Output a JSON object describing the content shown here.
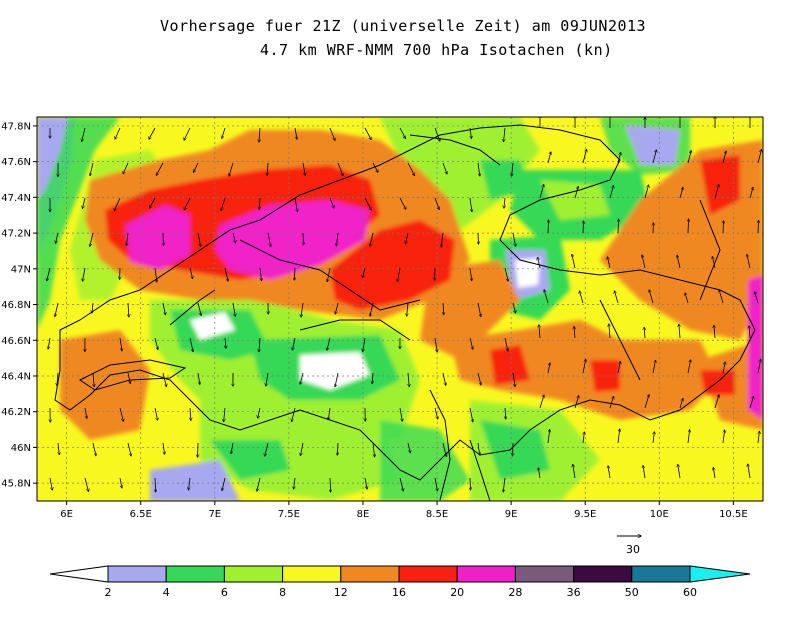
{
  "title": {
    "line1": "Vorhersage fuer 21Z (universelle Zeit) am 09JUN2013",
    "line2": "4.7 km WRF-NMM 700 hPa Isotachen (kn)"
  },
  "map": {
    "lon_ticks": [
      "6E",
      "6.5E",
      "7E",
      "7.5E",
      "8E",
      "8.5E",
      "9E",
      "9.5E",
      "10E",
      "10.5E"
    ],
    "lat_ticks": [
      "47.8N",
      "47.6N",
      "47.4N",
      "47.2N",
      "47N",
      "46.8N",
      "46.6N",
      "46.4N",
      "46.2N",
      "46N",
      "45.8N"
    ],
    "lon_range": [
      5.8,
      10.7
    ],
    "lat_range": [
      45.7,
      47.85
    ],
    "reference_vector_label": "30"
  },
  "colorbar": {
    "labels": [
      "2",
      "4",
      "6",
      "8",
      "12",
      "16",
      "20",
      "28",
      "36",
      "50",
      "60"
    ],
    "colors": [
      "#ffffff",
      "#a8a8f0",
      "#36d957",
      "#a0f030",
      "#f8f820",
      "#f08820",
      "#f82010",
      "#f020c8",
      "#7a5a7a",
      "#3a0a40",
      "#187898",
      "#18f0f0"
    ]
  },
  "field_colors": {
    "lavender": "#a8a8f0",
    "green": "#36d957",
    "lightgreen": "#a0f030",
    "yellow": "#f8f820",
    "orange": "#f08820",
    "red": "#f82010",
    "magenta": "#f020c8",
    "white": "#ffffff"
  }
}
